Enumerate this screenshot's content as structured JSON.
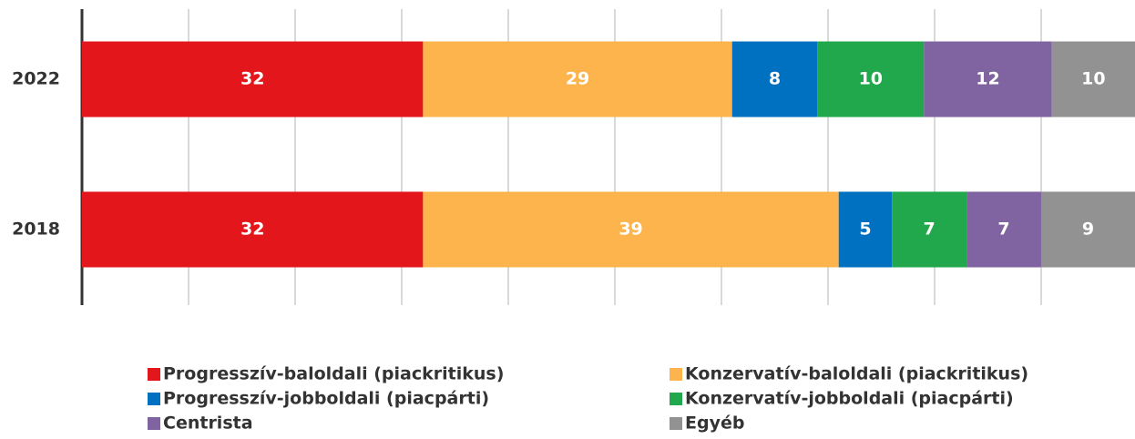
{
  "chart_data": {
    "type": "stacked-barh",
    "categories": [
      "2022",
      "2018"
    ],
    "series": [
      {
        "name": "Progresszív-baloldali (piackritikus)",
        "color": "#e3171b",
        "values": [
          32,
          32
        ]
      },
      {
        "name": "Konzervatív-baloldali (piackritikus)",
        "color": "#fdb44c",
        "values": [
          29,
          39
        ]
      },
      {
        "name": "Progresszív-jobboldali (piacpárti)",
        "color": "#0070c0",
        "values": [
          8,
          5
        ]
      },
      {
        "name": "Konzervatív-jobboldali (piacpárti)",
        "color": "#21a84c",
        "values": [
          10,
          7
        ]
      },
      {
        "name": "Centrista",
        "color": "#8063a1",
        "values": [
          12,
          7
        ]
      },
      {
        "name": "Egyéb",
        "color": "#929292",
        "values": [
          10,
          9
        ]
      }
    ],
    "xlim": [
      0,
      100
    ],
    "xticks": [
      0,
      10,
      20,
      30,
      40,
      50,
      60,
      70,
      80,
      90,
      100
    ],
    "grid": true,
    "legend": "bottom"
  }
}
